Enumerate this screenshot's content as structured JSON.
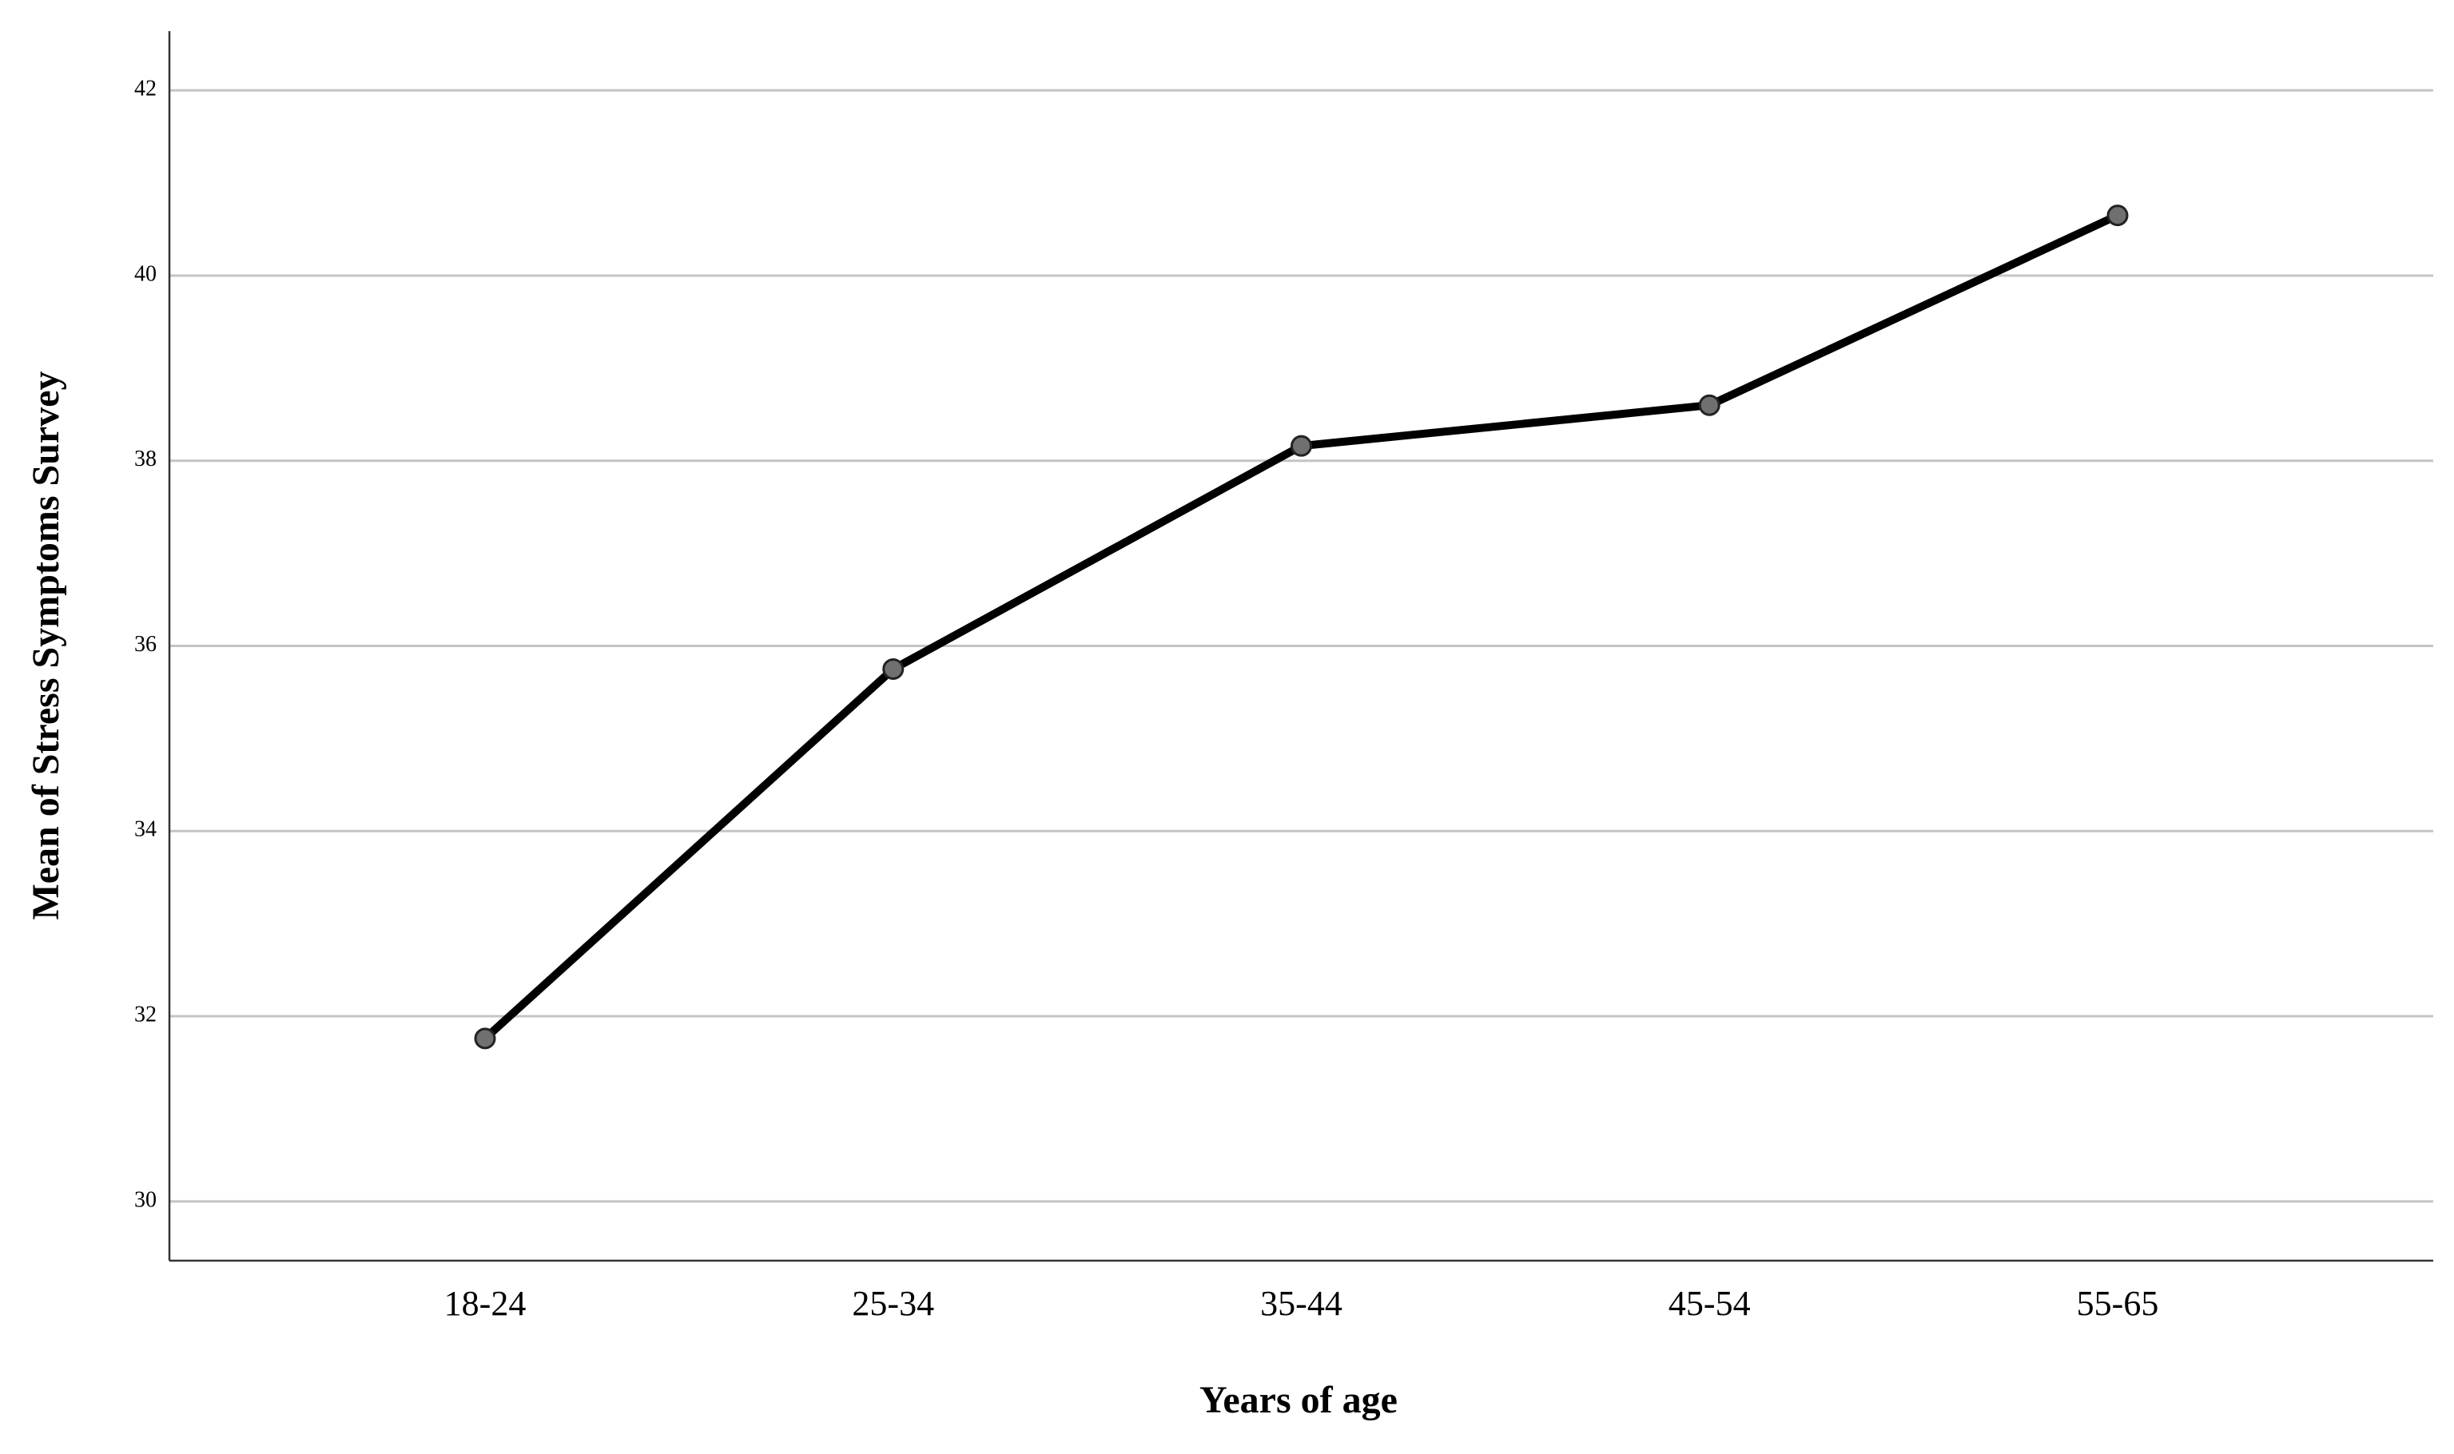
{
  "chart_data": {
    "type": "line",
    "x_label": "Years of age",
    "y_label": "Mean of Stress Symptoms Survey",
    "categories": [
      "18-24",
      "25-34",
      "35-44",
      "45-54",
      "55-65"
    ],
    "series": [
      {
        "color": "#000000",
        "values": [
          31.76,
          35.75,
          38.16,
          38.6,
          40.65
        ]
      }
    ],
    "ylim": [
      29.36,
      42.64
    ],
    "yticks": [
      30,
      32,
      34,
      36,
      38,
      40,
      42
    ],
    "grid": true
  }
}
